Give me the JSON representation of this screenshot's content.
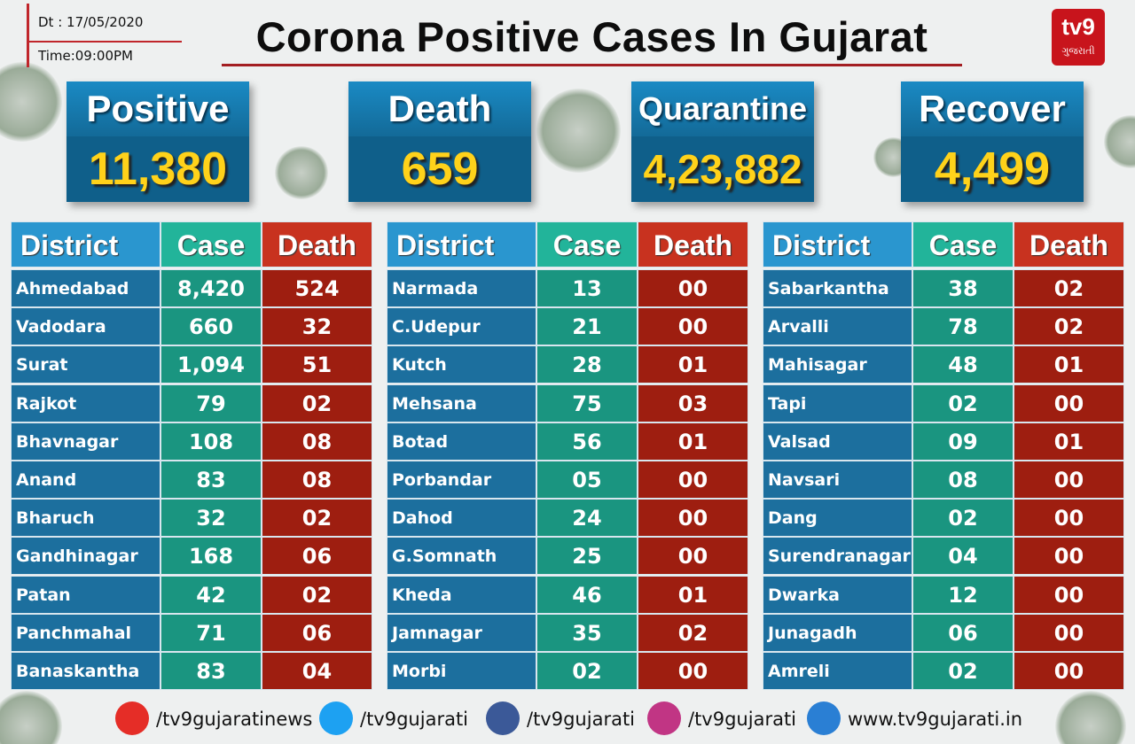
{
  "header": {
    "date": "Dt : 17/05/2020",
    "time": "Time:09:00PM",
    "title": "Corona Positive Cases In Gujarat",
    "logo": "tv9",
    "logo_sub": "ગુજરાતી"
  },
  "stats": [
    {
      "label": "Positive",
      "value": "11,380"
    },
    {
      "label": "Death",
      "value": "659"
    },
    {
      "label": "Quarantine",
      "value": "4,23,882"
    },
    {
      "label": "Recover",
      "value": "4,499"
    }
  ],
  "tables": [
    {
      "headers": [
        "District",
        "Case",
        "Death"
      ],
      "rows": [
        [
          "Ahmedabad",
          "8,420",
          "524"
        ],
        [
          "Vadodara",
          "660",
          "32"
        ],
        [
          "Surat",
          "1,094",
          "51"
        ],
        [
          "Rajkot",
          "79",
          "02"
        ],
        [
          "Bhavnagar",
          "108",
          "08"
        ],
        [
          "Anand",
          "83",
          "08"
        ],
        [
          "Bharuch",
          "32",
          "02"
        ],
        [
          "Gandhinagar",
          "168",
          "06"
        ],
        [
          "Patan",
          "42",
          "02"
        ],
        [
          "Panchmahal",
          "71",
          "06"
        ],
        [
          "Banaskantha",
          "83",
          "04"
        ]
      ]
    },
    {
      "headers": [
        "District",
        "Case",
        "Death"
      ],
      "rows": [
        [
          "Narmada",
          "13",
          "00"
        ],
        [
          "C.Udepur",
          "21",
          "00"
        ],
        [
          "Kutch",
          "28",
          "01"
        ],
        [
          "Mehsana",
          "75",
          "03"
        ],
        [
          "Botad",
          "56",
          "01"
        ],
        [
          "Porbandar",
          "05",
          "00"
        ],
        [
          "Dahod",
          "24",
          "00"
        ],
        [
          "G.Somnath",
          "25",
          "00"
        ],
        [
          "Kheda",
          "46",
          "01"
        ],
        [
          "Jamnagar",
          "35",
          "02"
        ],
        [
          "Morbi",
          "02",
          "00"
        ]
      ]
    },
    {
      "headers": [
        "District",
        "Case",
        "Death"
      ],
      "rows": [
        [
          "Sabarkantha",
          "38",
          "02"
        ],
        [
          "Arvalli",
          "78",
          "02"
        ],
        [
          "Mahisagar",
          "48",
          "01"
        ],
        [
          "Tapi",
          "02",
          "00"
        ],
        [
          "Valsad",
          "09",
          "01"
        ],
        [
          "Navsari",
          "08",
          "00"
        ],
        [
          "Dang",
          "02",
          "00"
        ],
        [
          "Surendranagar",
          "04",
          "00"
        ],
        [
          "Dwarka",
          "12",
          "00"
        ],
        [
          "Junagadh",
          "06",
          "00"
        ],
        [
          "Amreli",
          "02",
          "00"
        ]
      ]
    }
  ],
  "footer": {
    "links": [
      "/tv9gujaratinews",
      "/tv9gujarati",
      "/tv9gujarati",
      "/tv9gujarati",
      "www.tv9gujarati.in"
    ]
  }
}
